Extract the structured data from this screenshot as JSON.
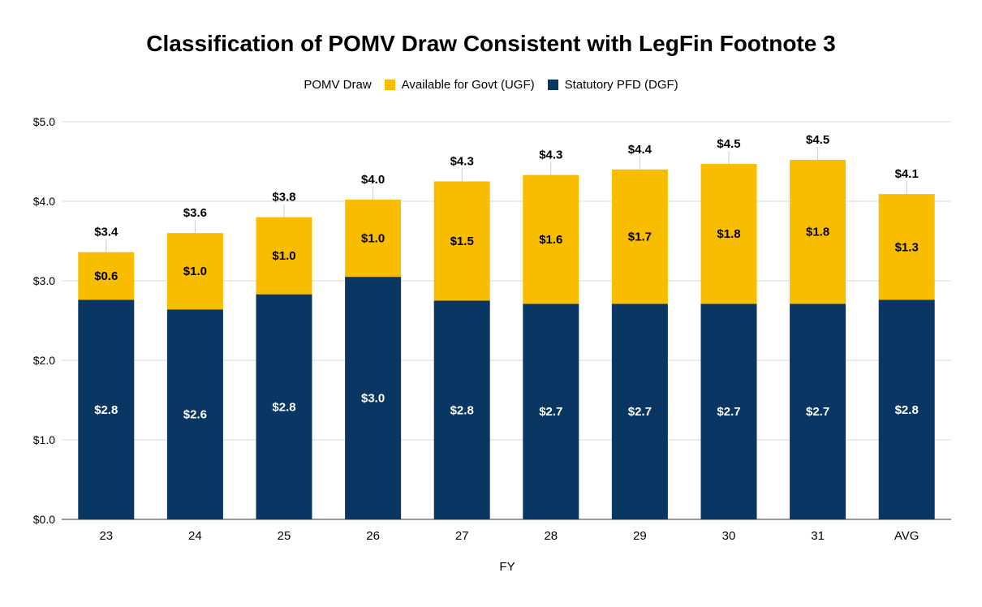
{
  "chart_data": {
    "type": "bar",
    "stacked": true,
    "title": "Classification of POMV Draw Consistent with LegFin Footnote 3",
    "xlabel": "FY",
    "ylabel": "",
    "ylim": [
      0,
      5
    ],
    "y_ticks": [
      "$0.0",
      "$1.0",
      "$2.0",
      "$3.0",
      "$4.0",
      "$5.0"
    ],
    "grid": true,
    "legend_position": "top",
    "legend_title": "POMV Draw",
    "categories": [
      "23",
      "24",
      "25",
      "26",
      "27",
      "28",
      "29",
      "30",
      "31",
      "AVG"
    ],
    "series": [
      {
        "name": "Statutory PFD (DGF)",
        "color": "#0a3663",
        "values": [
          2.76,
          2.64,
          2.83,
          3.05,
          2.75,
          2.71,
          2.71,
          2.71,
          2.71,
          2.76
        ],
        "labels": [
          "$2.8",
          "$2.6",
          "$2.8",
          "$3.0",
          "$2.8",
          "$2.7",
          "$2.7",
          "$2.7",
          "$2.7",
          "$2.8"
        ]
      },
      {
        "name": "Available for Govt (UGF)",
        "color": "#f9bd00",
        "values": [
          0.6,
          0.96,
          0.97,
          0.97,
          1.5,
          1.62,
          1.69,
          1.76,
          1.81,
          1.33
        ],
        "labels": [
          "$0.6",
          "$1.0",
          "$1.0",
          "$1.0",
          "$1.5",
          "$1.6",
          "$1.7",
          "$1.8",
          "$1.8",
          "$1.3"
        ]
      }
    ],
    "totals": [
      "$3.4",
      "$3.6",
      "$3.8",
      "$4.0",
      "$4.3",
      "$4.3",
      "$4.4",
      "$4.5",
      "$4.5",
      "$4.1"
    ]
  }
}
